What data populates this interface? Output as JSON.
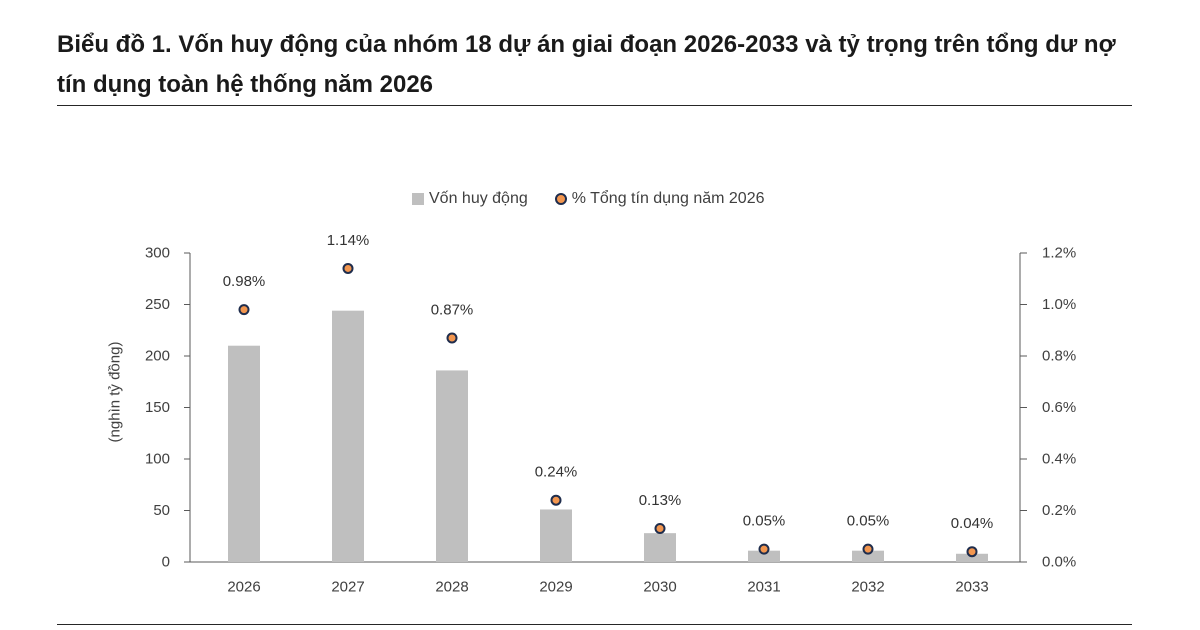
{
  "chart_data": {
    "type": "bar",
    "title": "Biểu đồ 1. Vốn huy động của nhóm 18 dự án giai đoạn 2026-2033 và tỷ trọng trên tổng dư nợ tín dụng toàn hệ thống năm 2026",
    "categories": [
      "2026",
      "2027",
      "2028",
      "2029",
      "2030",
      "2031",
      "2032",
      "2033"
    ],
    "series": [
      {
        "name": "Vốn huy động",
        "type": "bar",
        "axis": "left",
        "color": "#bfbfbf",
        "values": [
          210,
          244,
          186,
          51,
          28,
          11,
          11,
          8
        ]
      },
      {
        "name": "% Tổng tín dụng năm 2026",
        "type": "scatter",
        "axis": "right",
        "color": "#f2964f",
        "edge_color": "#1f2d4d",
        "values": [
          0.98,
          1.14,
          0.87,
          0.24,
          0.13,
          0.05,
          0.05,
          0.04
        ],
        "data_labels": [
          "0.98%",
          "1.14%",
          "0.87%",
          "0.24%",
          "0.13%",
          "0.05%",
          "0.05%",
          "0.04%"
        ]
      }
    ],
    "ylabel": "(nghìn tỷ đồng)",
    "ylim": [
      0,
      300
    ],
    "yticks": [
      0,
      50,
      100,
      150,
      200,
      250,
      300
    ],
    "y2lim": [
      0,
      1.2
    ],
    "y2ticks": [
      "0.0%",
      "0.2%",
      "0.4%",
      "0.6%",
      "0.8%",
      "1.0%",
      "1.2%"
    ],
    "legend": "top-center",
    "grid": false
  }
}
